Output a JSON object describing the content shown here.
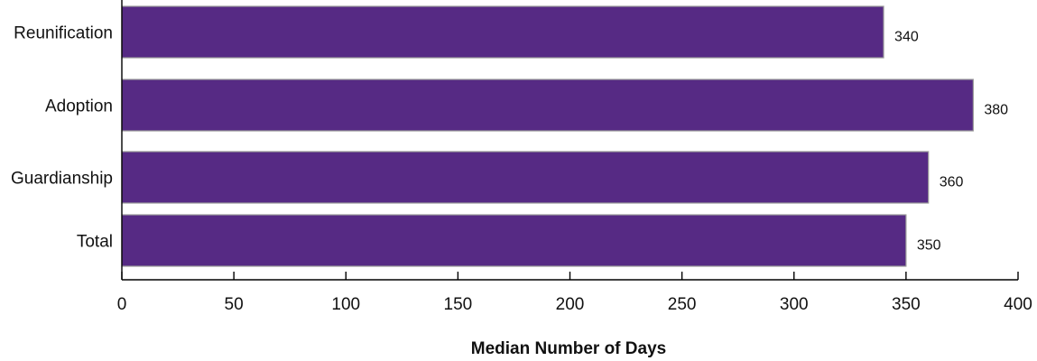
{
  "chart_data": {
    "type": "bar",
    "orientation": "horizontal",
    "categories": [
      "Reunification",
      "Adoption",
      "Guardianship",
      "Total"
    ],
    "values": [
      340,
      380,
      360,
      350
    ],
    "value_labels": [
      "340",
      "380",
      "360",
      "350"
    ],
    "xlabel": "Median Number of Days",
    "ylabel": "",
    "xlim": [
      0,
      400
    ],
    "xticks": [
      0,
      50,
      100,
      150,
      200,
      250,
      300,
      350,
      400
    ],
    "xtick_labels": [
      "0",
      "50",
      "100",
      "150",
      "200",
      "250",
      "300",
      "350",
      "400"
    ],
    "grid": false,
    "legend": "none",
    "colors": {
      "bar_fill": "#562a84",
      "bar_stroke": "#9a9a9a",
      "axis": "#000000"
    }
  }
}
